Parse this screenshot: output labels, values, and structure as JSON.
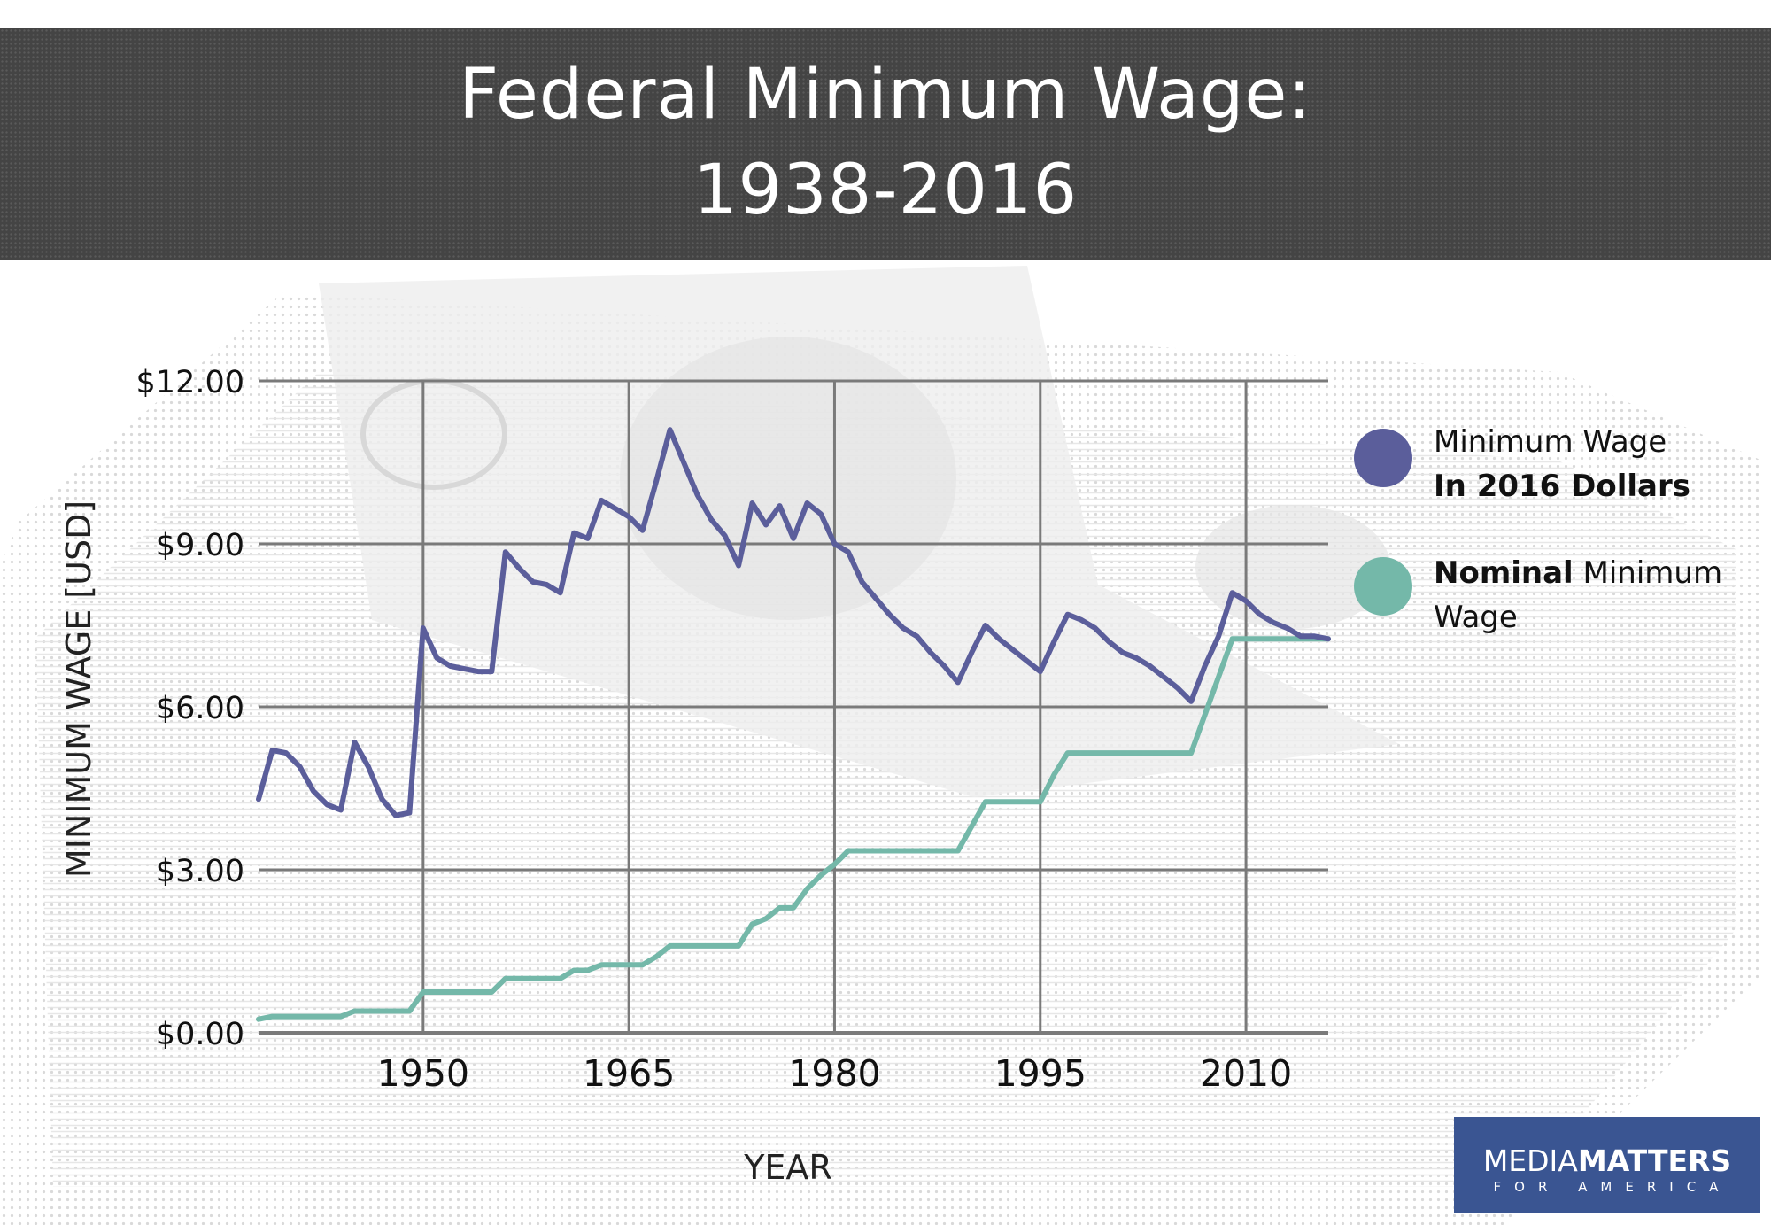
{
  "title": {
    "line1": "Federal Minimum Wage:",
    "line2": "1938-2016"
  },
  "legend": [
    {
      "name": "Minimum Wage In 2016 Dollars",
      "text_normal": "Minimum Wage",
      "text_bold": "In 2016 Dollars",
      "color": "#5b5e9b"
    },
    {
      "name": "Nominal Minimum Wage",
      "text_bold": "Nominal",
      "text_normal": "Minimum",
      "text_line2": "Wage",
      "color": "#74b8a9"
    }
  ],
  "logo": {
    "main_light": "MEDIA",
    "main_bold": "MATTERS",
    "sub": "FOR AMERICA"
  },
  "chart_data": {
    "type": "line",
    "title": "Federal Minimum Wage: 1938-2016",
    "xlabel": "YEAR",
    "ylabel": "MINIMUM WAGE [USD]",
    "xlim": [
      1938,
      2016
    ],
    "ylim": [
      0,
      12
    ],
    "x_ticks": [
      1950,
      1965,
      1980,
      1995,
      2010
    ],
    "x_tick_labels": [
      "1950",
      "1965",
      "1980",
      "1995",
      "2010"
    ],
    "y_ticks": [
      0,
      3,
      6,
      9,
      12
    ],
    "y_tick_labels": [
      "$0.00",
      "$3.00",
      "$6.00",
      "$9.00",
      "$12.00"
    ],
    "grid": true,
    "legend_position": "right",
    "x": [
      1938,
      1939,
      1940,
      1941,
      1942,
      1943,
      1944,
      1945,
      1946,
      1947,
      1948,
      1949,
      1950,
      1951,
      1952,
      1953,
      1954,
      1955,
      1956,
      1957,
      1958,
      1959,
      1960,
      1961,
      1962,
      1963,
      1964,
      1965,
      1966,
      1967,
      1968,
      1969,
      1970,
      1971,
      1972,
      1973,
      1974,
      1975,
      1976,
      1977,
      1978,
      1979,
      1980,
      1981,
      1982,
      1983,
      1984,
      1985,
      1986,
      1987,
      1988,
      1989,
      1990,
      1991,
      1992,
      1993,
      1994,
      1995,
      1996,
      1997,
      1998,
      1999,
      2000,
      2001,
      2002,
      2003,
      2004,
      2005,
      2006,
      2007,
      2008,
      2009,
      2010,
      2011,
      2012,
      2013,
      2014,
      2015,
      2016
    ],
    "series": [
      {
        "name": "Minimum Wage In 2016 Dollars",
        "color": "#5b5e9b",
        "values": [
          4.3,
          5.2,
          5.15,
          4.9,
          4.45,
          4.2,
          4.1,
          5.35,
          4.9,
          4.3,
          4.0,
          4.05,
          7.45,
          6.9,
          6.75,
          6.7,
          6.65,
          6.65,
          8.85,
          8.55,
          8.3,
          8.25,
          8.1,
          9.2,
          9.1,
          9.8,
          9.65,
          9.5,
          9.25,
          10.15,
          11.1,
          10.5,
          9.9,
          9.45,
          9.15,
          8.6,
          9.75,
          9.35,
          9.7,
          9.1,
          9.75,
          9.55,
          9.0,
          8.85,
          8.3,
          8.0,
          7.7,
          7.45,
          7.3,
          7.0,
          6.75,
          6.45,
          7.0,
          7.5,
          7.25,
          7.05,
          6.85,
          6.65,
          7.2,
          7.7,
          7.6,
          7.45,
          7.2,
          7.0,
          6.9,
          6.75,
          6.55,
          6.35,
          6.1,
          6.75,
          7.3,
          8.1,
          7.95,
          7.7,
          7.55,
          7.45,
          7.3,
          7.3,
          7.25
        ]
      },
      {
        "name": "Nominal Minimum Wage",
        "color": "#74b8a9",
        "values": [
          0.25,
          0.3,
          0.3,
          0.3,
          0.3,
          0.3,
          0.3,
          0.4,
          0.4,
          0.4,
          0.4,
          0.4,
          0.75,
          0.75,
          0.75,
          0.75,
          0.75,
          0.75,
          1.0,
          1.0,
          1.0,
          1.0,
          1.0,
          1.15,
          1.15,
          1.25,
          1.25,
          1.25,
          1.25,
          1.4,
          1.6,
          1.6,
          1.6,
          1.6,
          1.6,
          1.6,
          2.0,
          2.1,
          2.3,
          2.3,
          2.65,
          2.9,
          3.1,
          3.35,
          3.35,
          3.35,
          3.35,
          3.35,
          3.35,
          3.35,
          3.35,
          3.35,
          3.8,
          4.25,
          4.25,
          4.25,
          4.25,
          4.25,
          4.75,
          5.15,
          5.15,
          5.15,
          5.15,
          5.15,
          5.15,
          5.15,
          5.15,
          5.15,
          5.15,
          5.85,
          6.55,
          7.25,
          7.25,
          7.25,
          7.25,
          7.25,
          7.25,
          7.25,
          7.25
        ]
      }
    ]
  }
}
